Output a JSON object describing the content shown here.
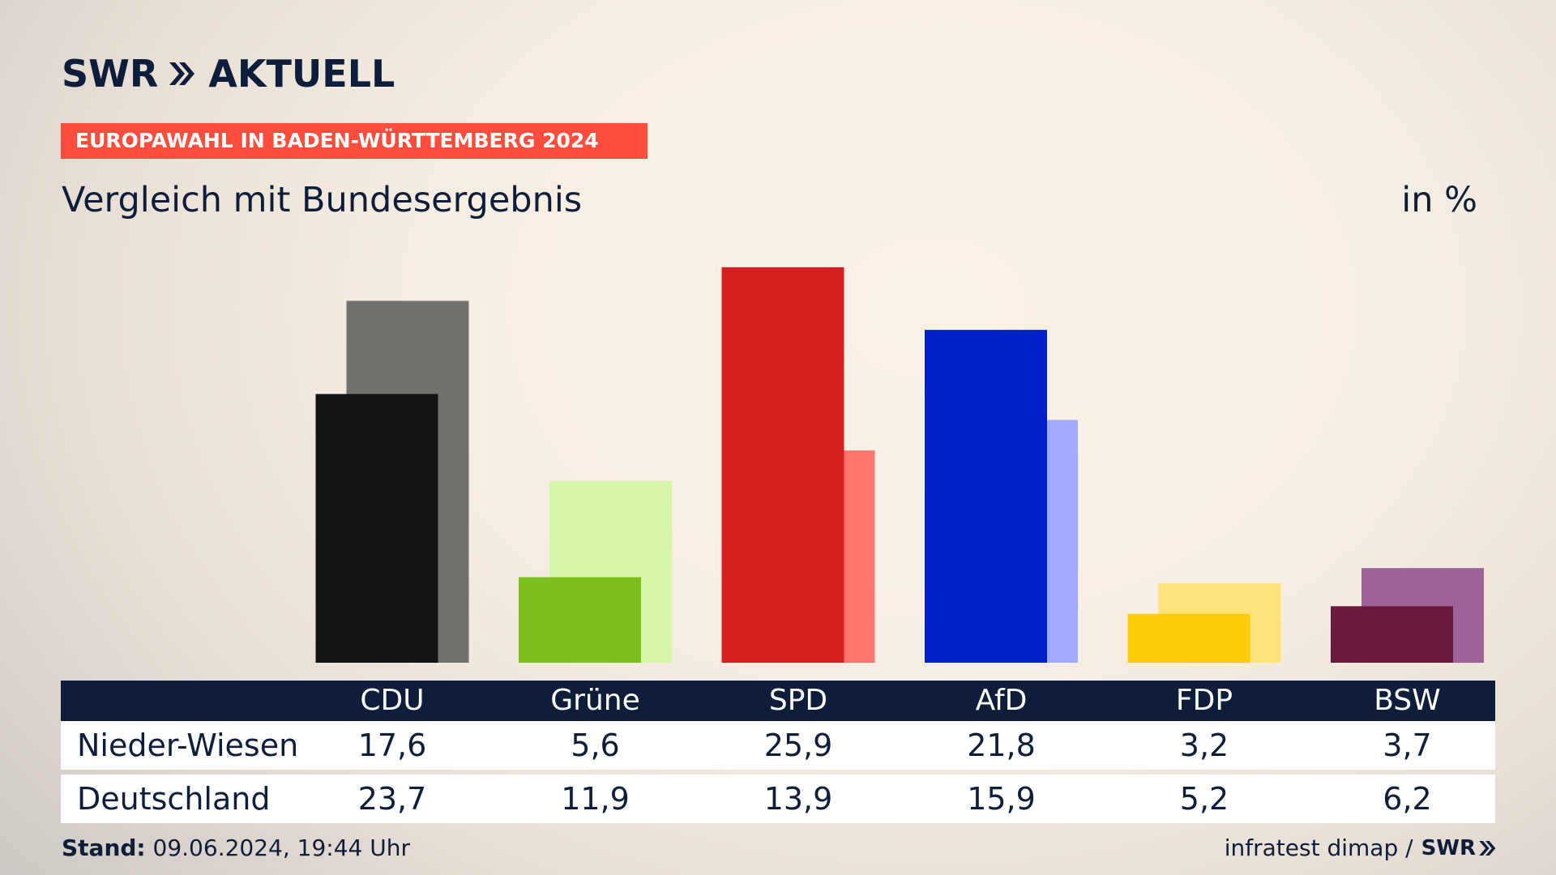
{
  "brand": {
    "name": "SWR",
    "suffix": "AKTUELL"
  },
  "tag": "EUROPAWAHL IN BADEN-WÜRTTEMBERG 2024",
  "subtitle": "Vergleich mit Bundesergebnis",
  "unit": "in %",
  "footer": {
    "stand_label": "Stand:",
    "stand_value": "09.06.2024, 19:44 Uhr",
    "source": "infratest dimap /",
    "source_brand": "SWR"
  },
  "chart_data": {
    "type": "bar",
    "categories": [
      "CDU",
      "Grüne",
      "SPD",
      "AfD",
      "FDP",
      "BSW"
    ],
    "series": [
      {
        "name": "Nieder-Wiesen",
        "values": [
          17.6,
          5.6,
          25.9,
          21.8,
          3.2,
          3.7
        ]
      },
      {
        "name": "Deutschland",
        "values": [
          23.7,
          11.9,
          13.9,
          15.9,
          5.2,
          6.2
        ]
      }
    ],
    "value_labels": {
      "Nieder-Wiesen": [
        "17,6",
        "5,6",
        "25,9",
        "21,8",
        "3,2",
        "3,7"
      ],
      "Deutschland": [
        "23,7",
        "11,9",
        "13,9",
        "15,9",
        "5,2",
        "6,2"
      ]
    },
    "colors": {
      "front": [
        "#141414",
        "#7abf1e",
        "#d62020",
        "#0020c8",
        "#fecc0b",
        "#6b1a3e"
      ],
      "back": [
        "#73716e",
        "#d6f5a8",
        "#ff766f",
        "#9faaff",
        "#ffe27a",
        "#9c6399"
      ]
    },
    "ylim": [
      0,
      26
    ]
  }
}
